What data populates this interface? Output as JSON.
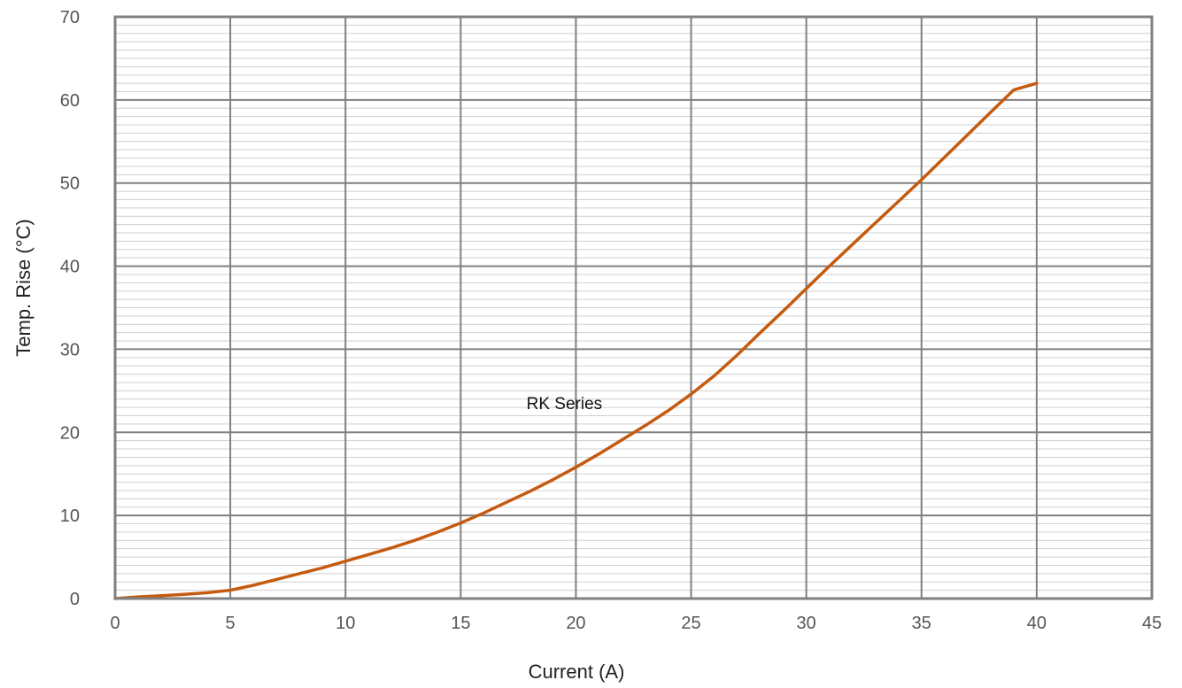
{
  "chart_data": {
    "type": "line",
    "title": "",
    "xlabel": "Current (A)",
    "ylabel": "Temp. Rise (°C)",
    "xlim": [
      0,
      45
    ],
    "ylim": [
      0,
      70
    ],
    "x_ticks": [
      "0",
      "5",
      "10",
      "15",
      "20",
      "25",
      "30",
      "35",
      "40",
      "45"
    ],
    "y_ticks": [
      "0",
      "10",
      "20",
      "30",
      "40",
      "50",
      "60",
      "70"
    ],
    "grid": {
      "major": true,
      "minor_horizontal": true,
      "minor_step": 1
    },
    "annotations": [
      {
        "text": "RK Series",
        "x": 19.5,
        "y": 22.8
      }
    ],
    "series": [
      {
        "color": "#C55A11",
        "x": [
          0,
          1,
          2,
          3,
          4,
          5,
          6,
          7,
          8,
          9,
          10,
          11,
          12,
          13,
          14,
          15,
          16,
          17,
          18,
          19,
          20,
          21,
          22,
          23,
          24,
          25,
          26,
          27,
          28,
          29,
          30,
          31,
          32,
          33,
          34,
          35,
          36,
          37,
          38,
          39,
          40
        ],
        "y": [
          0,
          0.2,
          0.35,
          0.5,
          0.7,
          1.0,
          1.6,
          2.3,
          3.0,
          3.7,
          4.5,
          5.3,
          6.1,
          7.0,
          8.0,
          9.1,
          10.3,
          11.6,
          12.9,
          14.3,
          15.8,
          17.4,
          19.1,
          20.8,
          22.6,
          24.6,
          26.8,
          29.3,
          32.0,
          34.6,
          37.3,
          40.0,
          42.6,
          45.2,
          47.8,
          50.4,
          53.1,
          55.8,
          58.5,
          61.2,
          62.0
        ]
      }
    ]
  }
}
